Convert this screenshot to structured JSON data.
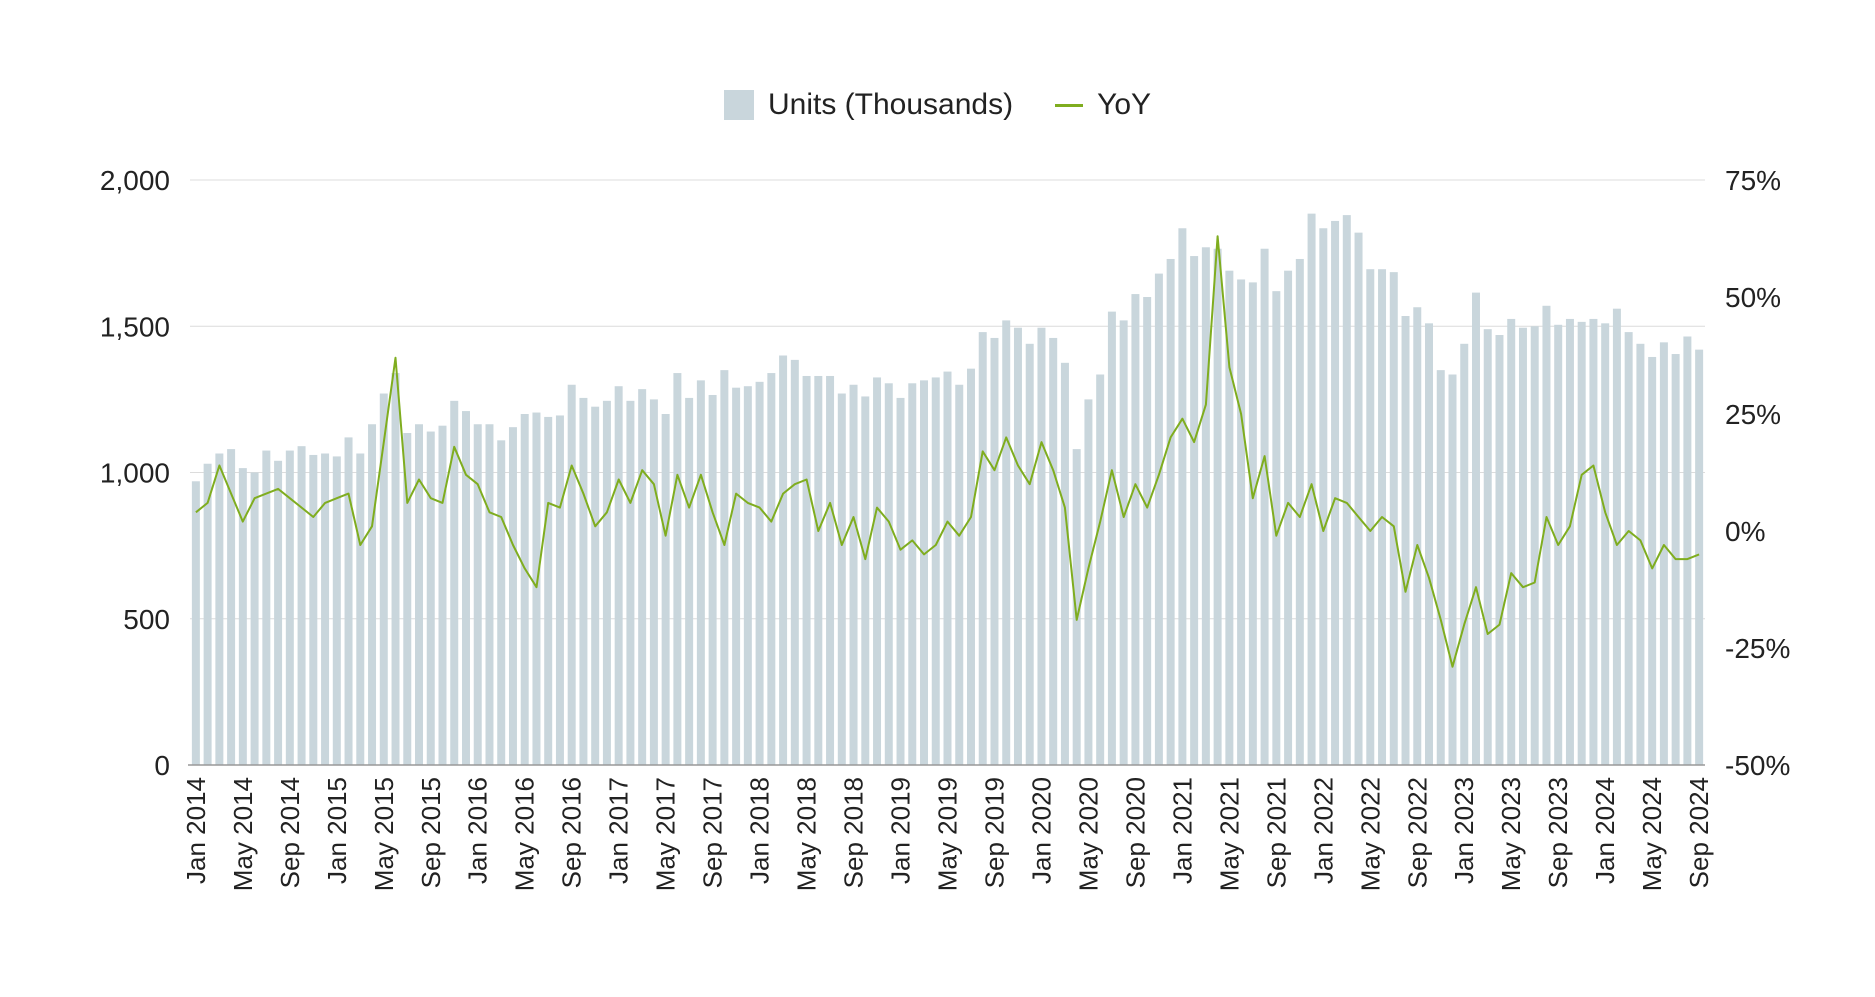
{
  "legend": {
    "bars_label": "Units (Thousands)",
    "line_label": "YoY"
  },
  "colors": {
    "bars": "#c9d6dc",
    "line": "#7fad1f",
    "grid": "#dcdcdc",
    "axis": "#999999",
    "text": "#222222"
  },
  "chart_data": {
    "type": "bar",
    "title": "",
    "xlabel": "",
    "ylabel": "",
    "y2label": "",
    "start": "2014-01",
    "ylim": [
      0,
      2000
    ],
    "y2lim": [
      -50,
      75
    ],
    "yticks": [
      "0",
      "500",
      "1,000",
      "1,500",
      "2,000"
    ],
    "y2ticks": [
      "-50%",
      "-25%",
      "0%",
      "25%",
      "50%",
      "75%"
    ],
    "xtick_every": 4,
    "grid": true,
    "legend_position": "top-center",
    "series": [
      {
        "name": "Units (Thousands)",
        "type": "bar",
        "axis": "left",
        "values": [
          970,
          1030,
          1065,
          1080,
          1015,
          1000,
          1075,
          1040,
          1075,
          1090,
          1060,
          1065,
          1055,
          1120,
          1065,
          1165,
          1270,
          1340,
          1135,
          1165,
          1140,
          1160,
          1245,
          1210,
          1165,
          1165,
          1110,
          1155,
          1200,
          1205,
          1190,
          1195,
          1300,
          1255,
          1225,
          1245,
          1295,
          1245,
          1285,
          1250,
          1200,
          1340,
          1255,
          1315,
          1265,
          1350,
          1290,
          1295,
          1310,
          1340,
          1400,
          1385,
          1330,
          1330,
          1330,
          1270,
          1300,
          1260,
          1325,
          1305,
          1255,
          1305,
          1315,
          1325,
          1345,
          1300,
          1355,
          1480,
          1460,
          1520,
          1495,
          1440,
          1495,
          1460,
          1375,
          1080,
          1250,
          1335,
          1550,
          1520,
          1610,
          1600,
          1680,
          1730,
          1835,
          1740,
          1770,
          1765,
          1690,
          1660,
          1650,
          1765,
          1620,
          1690,
          1730,
          1885,
          1835,
          1860,
          1880,
          1820,
          1695,
          1695,
          1685,
          1535,
          1565,
          1510,
          1350,
          1335,
          1440,
          1615,
          1490,
          1470,
          1525,
          1495,
          1500,
          1570,
          1505,
          1525,
          1515,
          1525,
          1510,
          1560,
          1480,
          1440,
          1395,
          1445,
          1405,
          1465,
          1420
        ]
      },
      {
        "name": "YoY",
        "type": "line",
        "axis": "right",
        "values": [
          4,
          6,
          14,
          8,
          2,
          7,
          8,
          9,
          7,
          5,
          3,
          6,
          7,
          8,
          -3,
          1,
          19,
          37,
          6,
          11,
          7,
          6,
          18,
          12,
          10,
          4,
          3,
          -3,
          -8,
          -12,
          6,
          5,
          14,
          8,
          1,
          4,
          11,
          6,
          13,
          10,
          -1,
          12,
          5,
          12,
          4,
          -3,
          8,
          6,
          5,
          2,
          8,
          10,
          11,
          0,
          6,
          -3,
          3,
          -6,
          5,
          2,
          -4,
          -2,
          -5,
          -3,
          2,
          -1,
          3,
          17,
          13,
          20,
          14,
          10,
          19,
          13,
          5,
          -19,
          -8,
          2,
          13,
          3,
          10,
          5,
          12,
          20,
          24,
          19,
          27,
          63,
          35,
          25,
          7,
          16,
          -1,
          6,
          3,
          10,
          0,
          7,
          6,
          3,
          0,
          3,
          1,
          -13,
          -3,
          -10,
          -19,
          -29,
          -20,
          -12,
          -22,
          -20,
          -9,
          -12,
          -11,
          3,
          -3,
          1,
          12,
          14,
          4,
          -3,
          0,
          -2,
          -8,
          -3,
          -6,
          -6,
          -5
        ]
      }
    ]
  }
}
